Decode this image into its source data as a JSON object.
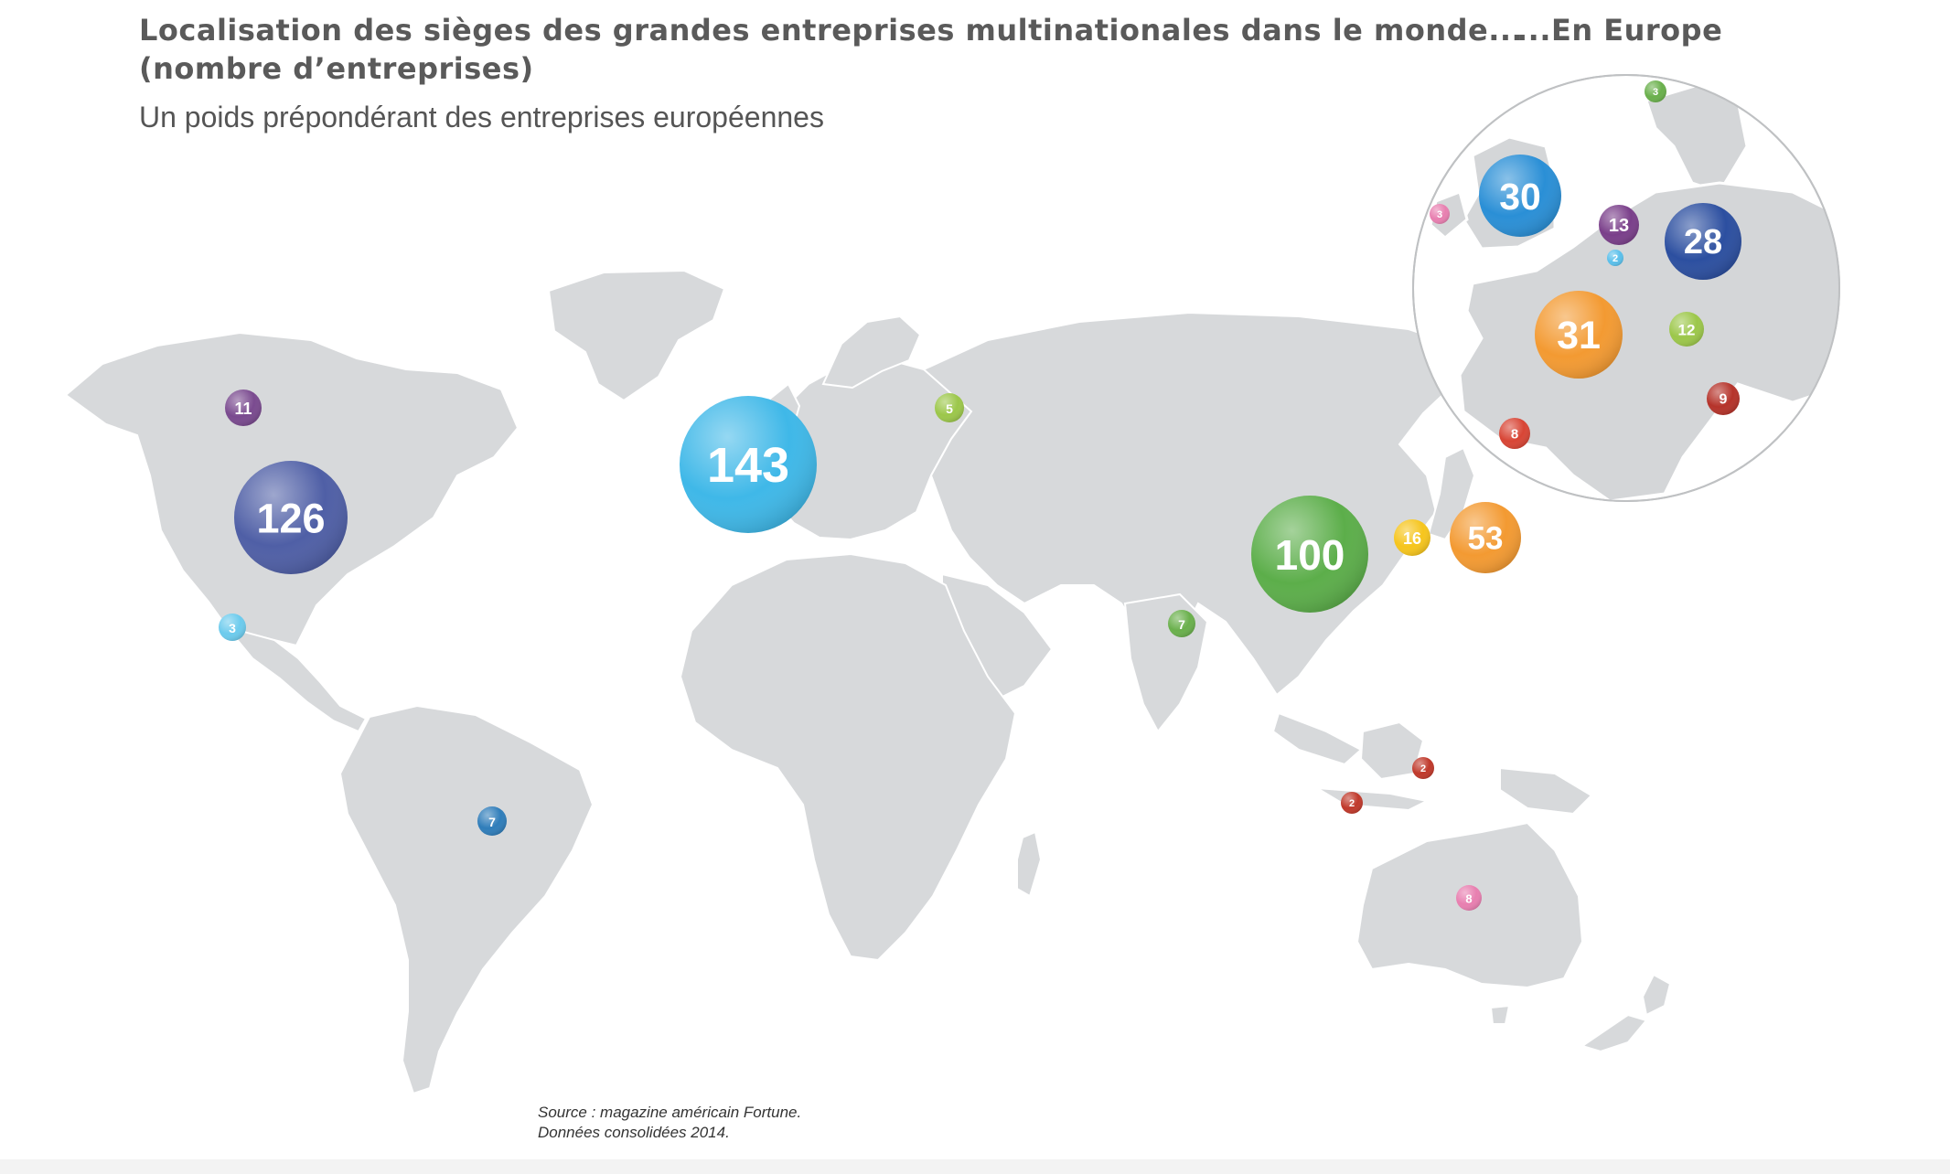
{
  "title": {
    "line1": "Localisation des sièges des grandes entreprises multinationales dans le monde...",
    "line2": "(nombre d’entreprises)"
  },
  "subtitle": "Un poids prépondérant des entreprises européennes",
  "inset": {
    "title": "...En Europe"
  },
  "source": {
    "line1": "Source : magazine américain Fortune.",
    "line2": "Données consolidées 2014."
  },
  "world_bubbles": [
    {
      "value": "11",
      "color": "#7a4a8f"
    },
    {
      "value": "126",
      "color": "#4f5fa6"
    },
    {
      "value": "3",
      "color": "#6ccbed"
    },
    {
      "value": "7",
      "color": "#2f7dba"
    },
    {
      "value": "143",
      "color": "#3fb8e8"
    },
    {
      "value": "5",
      "color": "#9cc74a"
    },
    {
      "value": "7",
      "color": "#6ab04c"
    },
    {
      "value": "100",
      "color": "#5cae4a"
    },
    {
      "value": "16",
      "color": "#f6c51d"
    },
    {
      "value": "53",
      "color": "#f39a32"
    },
    {
      "value": "2",
      "color": "#c0392b"
    },
    {
      "value": "2",
      "color": "#c0392b"
    },
    {
      "value": "8",
      "color": "#e87fb0"
    }
  ],
  "europe_bubbles": [
    {
      "value": "3",
      "color": "#6ab04c"
    },
    {
      "value": "30",
      "color": "#2a8fd6"
    },
    {
      "value": "3",
      "color": "#e87fb0"
    },
    {
      "value": "13",
      "color": "#7a3f8a"
    },
    {
      "value": "2",
      "color": "#5bc0eb"
    },
    {
      "value": "28",
      "color": "#2c4fa0"
    },
    {
      "value": "31",
      "color": "#f39a32"
    },
    {
      "value": "12",
      "color": "#9cc74a"
    },
    {
      "value": "9",
      "color": "#b5332a"
    },
    {
      "value": "8",
      "color": "#d84535"
    }
  ],
  "colors": {
    "land": "#d7d9db",
    "border": "#ffffff",
    "text": "#5a5a5a"
  }
}
